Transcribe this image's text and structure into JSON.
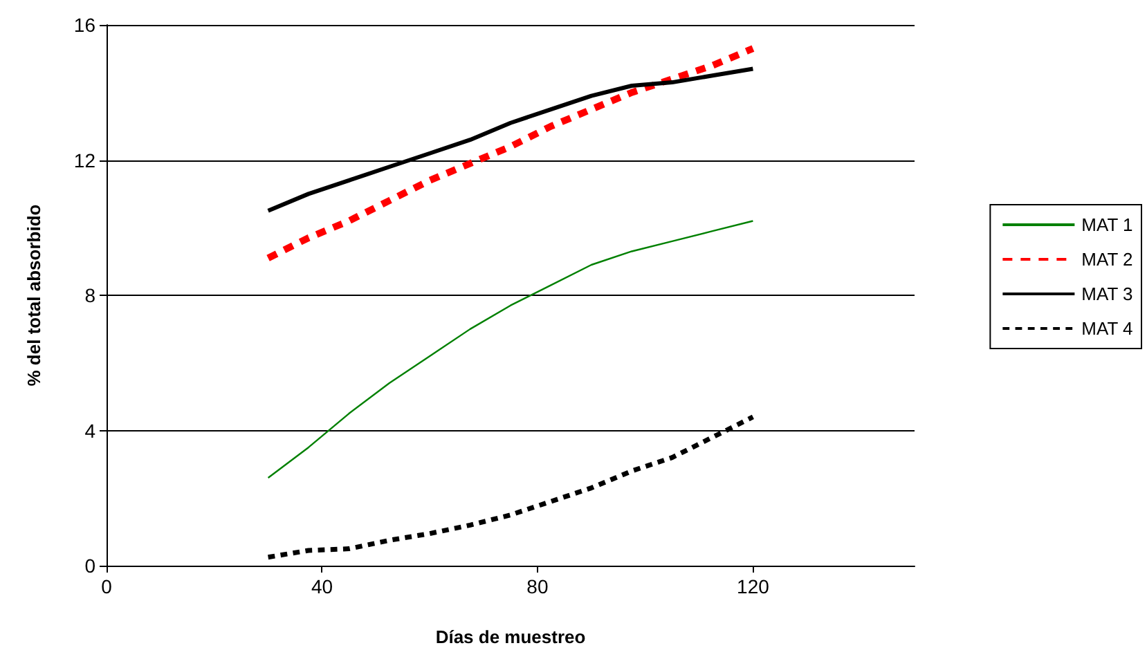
{
  "chart_data": {
    "type": "line",
    "xlabel": "Días de muestreo",
    "ylabel": "% del total absorbido",
    "x": [
      30,
      37.5,
      45,
      52.5,
      60,
      67.5,
      75,
      82.5,
      90,
      97.5,
      105,
      112.5,
      120
    ],
    "series": [
      {
        "name": "MAT 1",
        "color": "#008000",
        "line_style": "solid",
        "values": [
          2.6,
          3.5,
          4.5,
          5.4,
          6.2,
          7.0,
          7.7,
          8.3,
          8.9,
          9.3,
          9.6,
          9.9,
          10.2
        ]
      },
      {
        "name": "MAT 2",
        "color": "#ff0000",
        "line_style": "dashed",
        "values": [
          9.1,
          9.7,
          10.2,
          10.8,
          11.4,
          11.9,
          12.4,
          13.0,
          13.5,
          14.0,
          14.4,
          14.8,
          15.3
        ]
      },
      {
        "name": "MAT 3",
        "color": "#000000",
        "line_style": "solid",
        "values": [
          10.5,
          11.0,
          11.4,
          11.8,
          12.2,
          12.6,
          13.1,
          13.5,
          13.9,
          14.2,
          14.3,
          14.5,
          14.7
        ]
      },
      {
        "name": "MAT 4",
        "color": "#000000",
        "line_style": "dashed",
        "values": [
          0.25,
          0.45,
          0.5,
          0.75,
          0.95,
          1.2,
          1.5,
          1.9,
          2.3,
          2.8,
          3.2,
          3.8,
          4.4
        ]
      }
    ],
    "xlim": [
      0,
      150
    ],
    "xticks": [
      0,
      40,
      80,
      120
    ],
    "ylim": [
      0,
      16
    ],
    "yticks": [
      0,
      4,
      8,
      12,
      16
    ],
    "grid": "y",
    "legend": "right",
    "marker": "none"
  }
}
